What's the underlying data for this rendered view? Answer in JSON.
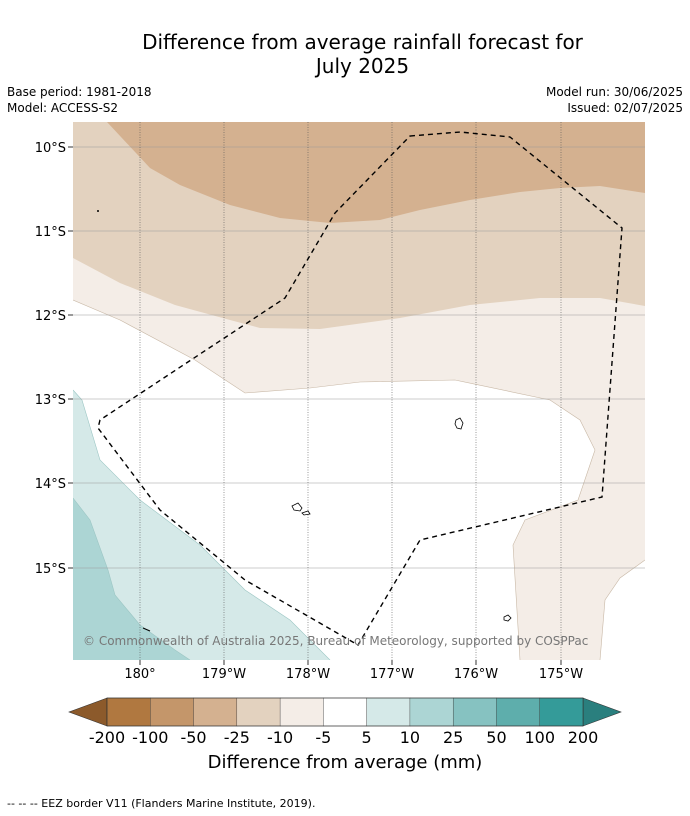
{
  "title_line1": "Difference from average rainfall forecast for",
  "title_line2": "July 2025",
  "base_period": "Base period: 1981-2018",
  "model": "Model: ACCESS-S2",
  "model_run": "Model run: 30/06/2025",
  "issued": "Issued: 02/07/2025",
  "lat_labels": [
    "10°S",
    "11°S",
    "12°S",
    "13°S",
    "14°S",
    "15°S"
  ],
  "lon_labels": [
    "180°",
    "179°W",
    "178°W",
    "177°W",
    "176°W",
    "175°W"
  ],
  "copyright": "© Commonwealth of Australia 2025, Bureau of Meteorology, supported by COSPPac",
  "colorbar": {
    "ticks": [
      "-200",
      "-100",
      "-50",
      "-25",
      "-10",
      "-5",
      "5",
      "10",
      "25",
      "50",
      "100",
      "200"
    ],
    "colors": [
      "#8c5a2b",
      "#b07840",
      "#c4966a",
      "#d4b190",
      "#e3d2bf",
      "#f4ede7",
      "#ffffff",
      "#d5e9e8",
      "#acd5d4",
      "#86c2c1",
      "#5eaeac",
      "#349b99",
      "#2a7f7e"
    ],
    "label": "Difference from average (mm)"
  },
  "footer": "--  --  -- EEZ border V11 (Flanders Marine Institute, 2019)."
}
